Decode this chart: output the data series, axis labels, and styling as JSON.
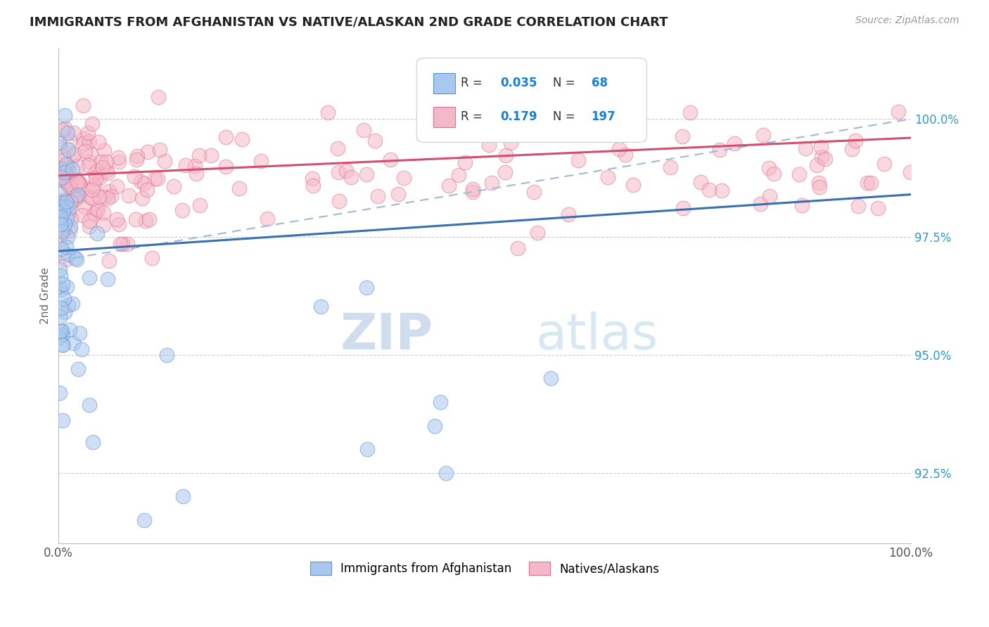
{
  "title": "IMMIGRANTS FROM AFGHANISTAN VS NATIVE/ALASKAN 2ND GRADE CORRELATION CHART",
  "source": "Source: ZipAtlas.com",
  "ylabel": "2nd Grade",
  "xlim": [
    0.0,
    100.0
  ],
  "ylim": [
    91.0,
    101.5
  ],
  "yticks": [
    92.5,
    95.0,
    97.5,
    100.0
  ],
  "ytick_labels": [
    "92.5%",
    "95.0%",
    "97.5%",
    "100.0%"
  ],
  "blue_R": 0.035,
  "blue_N": 68,
  "pink_R": 0.179,
  "pink_N": 197,
  "blue_fill": "#A8C8F0",
  "pink_fill": "#F5B8C8",
  "blue_edge": "#6090C8",
  "pink_edge": "#E07090",
  "blue_line_color": "#3A70B0",
  "pink_line_color": "#D05070",
  "dash_line_color": "#A0B8D8",
  "legend_text_color": "#333333",
  "legend_value_color": "#1A7FD4",
  "background_color": "#FFFFFF",
  "grid_color": "#CCCCCC",
  "title_color": "#222222",
  "ytick_color": "#3399CC",
  "watermark_zip": "ZIP",
  "watermark_atlas": "atlas"
}
